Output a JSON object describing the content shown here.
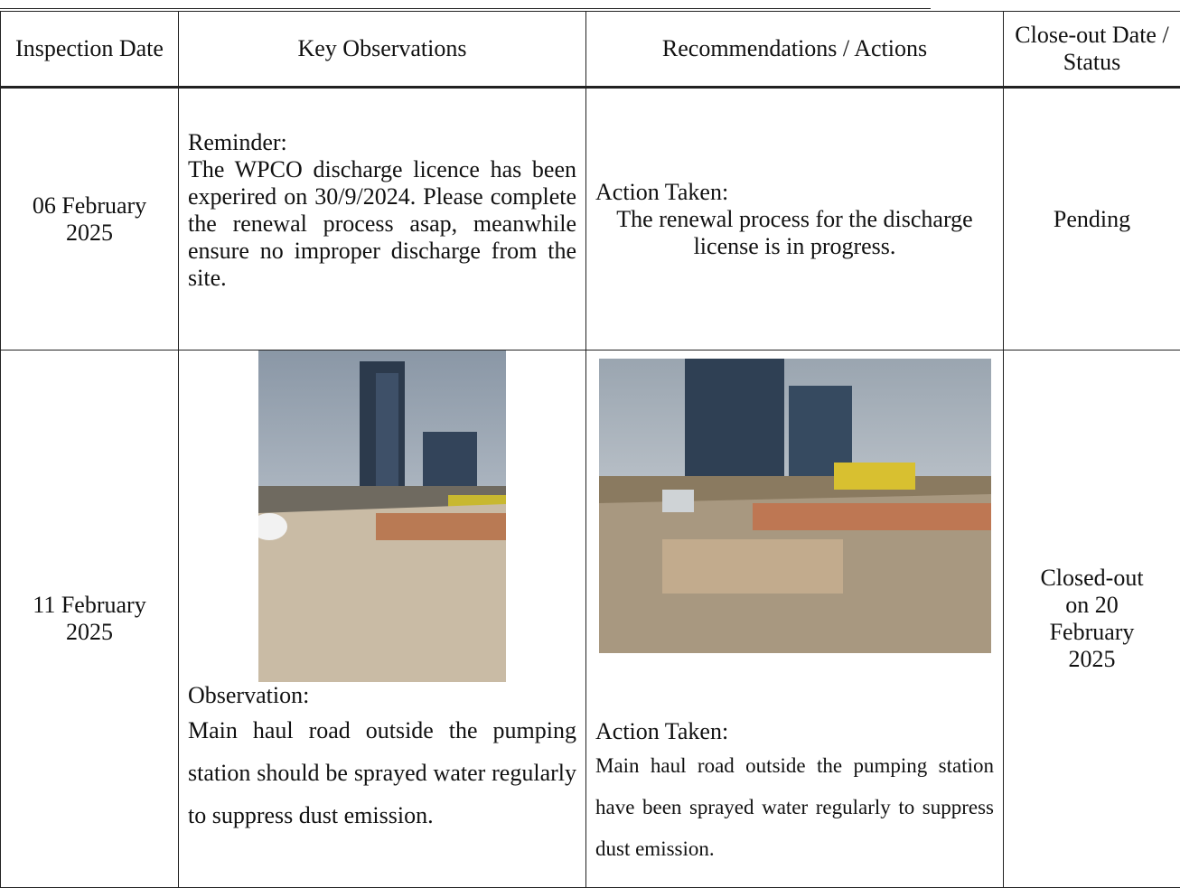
{
  "table": {
    "headers": [
      "Inspection Date",
      "Key Observations",
      "Recommendations / Actions",
      "Close-out Date / Status"
    ],
    "rows": [
      {
        "date": "06 February 2025",
        "observation": {
          "label": "Reminder:",
          "text": "The WPCO discharge licence has been experired on 30/9/2024. Please complete the renewal process asap, meanwhile ensure no improper discharge from the site."
        },
        "action": {
          "label": "Action Taken:",
          "text": "The renewal process for the discharge license is in progress."
        },
        "status": "Pending"
      },
      {
        "date": "11 February 2025",
        "observation": {
          "label": "Observation:",
          "text": "Main haul road outside the pumping station should be sprayed water regularly to suppress dust emission."
        },
        "action": {
          "label": "Action Taken:",
          "text": "Main haul road outside the pumping station have been sprayed water regularly to suppress dust emission."
        },
        "status": "Closed-out on 20 February 2025"
      }
    ]
  }
}
